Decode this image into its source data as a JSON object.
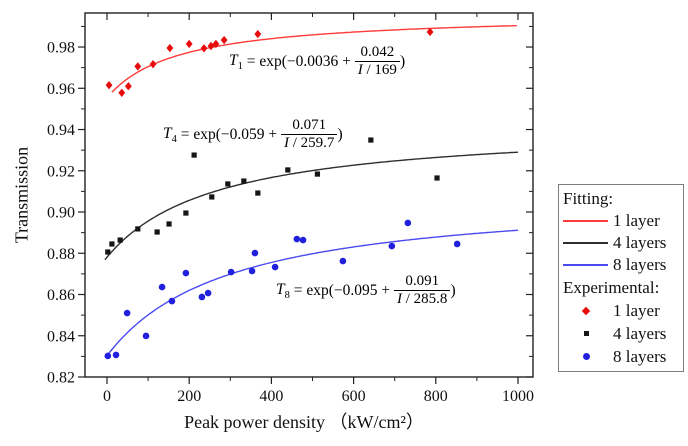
{
  "figure": {
    "background": "#ffffff",
    "axis_color": "#222222",
    "text_color": "#111111"
  },
  "axes": {
    "x": {
      "label": "Peak power density （kW/cm²）",
      "min": -53.5,
      "max": 1036.5,
      "major_ticks": [
        0,
        200,
        400,
        600,
        800,
        1000
      ],
      "tick_labels": [
        "0",
        "200",
        "400",
        "600",
        "800",
        "1000"
      ],
      "minor_ticks": [
        100,
        300,
        500,
        700,
        900
      ]
    },
    "y": {
      "label": "Transmission",
      "min": 0.82,
      "max": 0.9965,
      "major_ticks": [
        0.82,
        0.84,
        0.86,
        0.88,
        0.9,
        0.92,
        0.94,
        0.96,
        0.98
      ],
      "tick_labels": [
        "0.82",
        "0.84",
        "0.86",
        "0.88",
        "0.90",
        "0.92",
        "0.94",
        "0.96",
        "0.98"
      ],
      "minor_ticks": [
        0.83,
        0.85,
        0.87,
        0.89,
        0.91,
        0.93,
        0.95,
        0.97,
        0.99
      ]
    }
  },
  "chart_data": {
    "type": "scatter",
    "xlabel": "Peak power density （kW/cm²）",
    "ylabel": "Transmission",
    "xlim": [
      -53.5,
      1036.5
    ],
    "ylim": [
      0.82,
      0.9965
    ],
    "series": [
      {
        "id": "fit-1-layer",
        "name": "Fitting 1 layer",
        "kind": "line",
        "color": "#ff3b3b",
        "fit": {
          "a": -0.0036,
          "b": 0.042,
          "Isat": 169
        },
        "x_range": [
          12,
          1000
        ]
      },
      {
        "id": "fit-4-layers",
        "name": "Fitting 4 layers",
        "kind": "line",
        "color": "#2e2e2e",
        "fit": {
          "a": -0.059,
          "b": 0.071,
          "Isat": 259.7
        },
        "x_range": [
          -5,
          1000
        ]
      },
      {
        "id": "fit-8-layers",
        "name": "Fitting 8 layers",
        "kind": "line",
        "color": "#4a4af0",
        "fit": {
          "a": -0.095,
          "b": 0.091,
          "Isat": 285.8
        },
        "x_range": [
          0,
          1000
        ]
      },
      {
        "id": "exp-1-layer",
        "name": "Experimental 1 layer",
        "kind": "scatter",
        "marker": "diamond",
        "color": "#e80b0b",
        "points": [
          [
            5,
            0.9615
          ],
          [
            36,
            0.9578
          ],
          [
            52,
            0.961
          ],
          [
            75,
            0.9706
          ],
          [
            112,
            0.9717
          ],
          [
            153,
            0.9795
          ],
          [
            200,
            0.9815
          ],
          [
            236,
            0.9794
          ],
          [
            253,
            0.9805
          ],
          [
            265,
            0.9815
          ],
          [
            285,
            0.9834
          ],
          [
            367,
            0.9863
          ],
          [
            786,
            0.9873
          ]
        ]
      },
      {
        "id": "exp-4-layers",
        "name": "Experimental 4 layers",
        "kind": "scatter",
        "marker": "square",
        "color": "#151515",
        "points": [
          [
            2,
            0.8806
          ],
          [
            12,
            0.8845
          ],
          [
            32,
            0.8864
          ],
          [
            75,
            0.8918
          ],
          [
            122,
            0.8903
          ],
          [
            151,
            0.8942
          ],
          [
            192,
            0.8995
          ],
          [
            212,
            0.9276
          ],
          [
            255,
            0.9073
          ],
          [
            294,
            0.9136
          ],
          [
            333,
            0.915
          ],
          [
            367,
            0.9092
          ],
          [
            440,
            0.9204
          ],
          [
            512,
            0.9184
          ],
          [
            642,
            0.9349
          ],
          [
            803,
            0.9165
          ]
        ]
      },
      {
        "id": "exp-8-layers",
        "name": "Experimental 8 layers",
        "kind": "scatter",
        "marker": "circle",
        "color": "#2020dd",
        "points": [
          [
            2,
            0.8302
          ],
          [
            22,
            0.8307
          ],
          [
            49,
            0.851
          ],
          [
            95,
            0.8399
          ],
          [
            134,
            0.8636
          ],
          [
            158,
            0.8568
          ],
          [
            192,
            0.8704
          ],
          [
            231,
            0.8588
          ],
          [
            246,
            0.8607
          ],
          [
            302,
            0.8709
          ],
          [
            353,
            0.8714
          ],
          [
            360,
            0.8801
          ],
          [
            409,
            0.8733
          ],
          [
            462,
            0.8869
          ],
          [
            477,
            0.8864
          ],
          [
            574,
            0.8762
          ],
          [
            693,
            0.8835
          ],
          [
            732,
            0.8947
          ],
          [
            852,
            0.8845
          ]
        ]
      }
    ],
    "equations": [
      {
        "var": "T",
        "sub": "1",
        "lead": " = exp(−0.0036 + ",
        "num": "0.042",
        "den_var": "I",
        "den_rest": " / 169",
        "close": ")",
        "display": "T1 = exp(−0.0036 + 0.042/(I/169))"
      },
      {
        "var": "T",
        "sub": "4",
        "lead": " = exp(−0.059 + ",
        "num": "0.071",
        "den_var": "I",
        "den_rest": " / 259.7",
        "close": ")",
        "display": "T4 = exp(−0.059 + 0.071/(I/259.7))"
      },
      {
        "var": "T",
        "sub": "8",
        "lead": " = exp(−0.095 + ",
        "num": "0.091",
        "den_var": "I",
        "den_rest": " / 285.8",
        "close": ")",
        "display": "T8 = exp(−0.095 + 0.091/(I/285.8))"
      }
    ]
  },
  "legend": {
    "fitting_title": "Fitting:",
    "experimental_title": "Experimental:",
    "fitting_items": [
      {
        "label": "1 layer",
        "color": "#ff3b3b"
      },
      {
        "label": "4 layers",
        "color": "#2e2e2e"
      },
      {
        "label": "8 layers",
        "color": "#4a4af0"
      }
    ],
    "experimental_items": [
      {
        "label": "1 layer",
        "marker": "diamond",
        "color": "#e80b0b"
      },
      {
        "label": "4 layers",
        "marker": "square",
        "color": "#151515"
      },
      {
        "label": "8 layers",
        "marker": "circle",
        "color": "#2020dd"
      }
    ]
  }
}
